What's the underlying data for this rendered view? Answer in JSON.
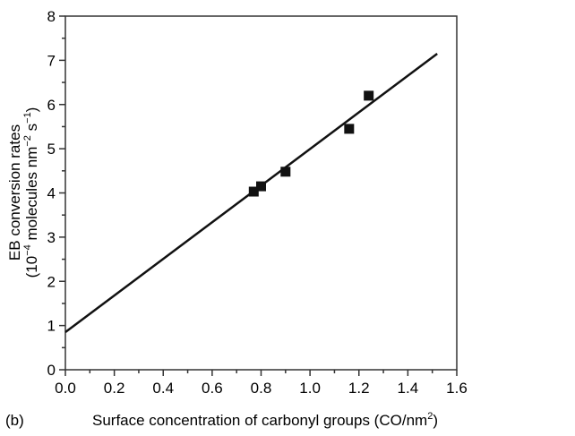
{
  "chart_data": {
    "type": "scatter",
    "panel_label": "(b)",
    "xlabel": "Surface concentration of carbonyl groups (CO/nm",
    "xlabel_sup": "2",
    "xlabel_end": ")",
    "ylabel_line1": "EB conversion rates",
    "ylabel_line2_parts": [
      "(10",
      "−4",
      " molecules nm",
      "−2",
      " s",
      "−1",
      ")"
    ],
    "xlim": [
      0,
      1.6
    ],
    "ylim": [
      0,
      8
    ],
    "xticks": [
      "0.0",
      "0.2",
      "0.4",
      "0.6",
      "0.8",
      "1.0",
      "1.2",
      "1.4",
      "1.6"
    ],
    "yticks": [
      "0",
      "1",
      "2",
      "3",
      "4",
      "5",
      "6",
      "7",
      "8"
    ],
    "points": [
      {
        "x": 0.77,
        "y": 4.03
      },
      {
        "x": 0.8,
        "y": 4.15
      },
      {
        "x": 0.9,
        "y": 4.48
      },
      {
        "x": 1.16,
        "y": 5.45
      },
      {
        "x": 1.24,
        "y": 6.2
      }
    ],
    "fit_line": {
      "x": [
        0,
        1.52
      ],
      "y": [
        0.85,
        7.15
      ]
    },
    "grid": false
  }
}
